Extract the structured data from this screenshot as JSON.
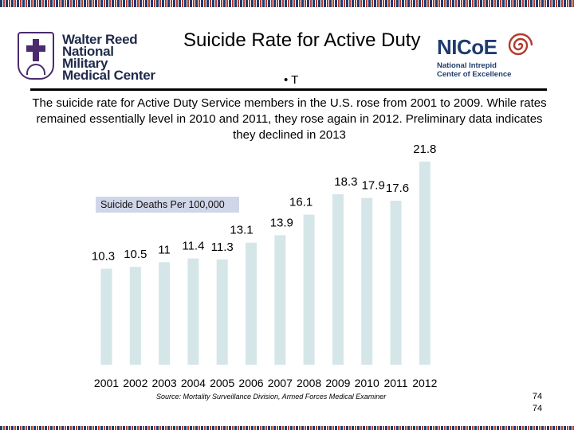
{
  "header": {
    "title": "Suicide Rate for Active Duty",
    "bullet": "• T",
    "logo_left_lines": [
      "Walter Reed",
      "National Military",
      "Medical Center"
    ],
    "logo_right_name": "NICoE",
    "logo_right_lines": [
      "National Intrepid",
      "Center of Excellence"
    ]
  },
  "description": "The suicide rate for Active Duty Service members in the U.S. rose from 2001 to 2009. While rates remained essentially level in 2010 and 2011, they rose again in 2012. Preliminary data indicates they declined in 2013",
  "chart_data": {
    "type": "bar",
    "title": "",
    "categories": [
      "2001",
      "2002",
      "2003",
      "2004",
      "2005",
      "2006",
      "2007",
      "2008",
      "2009",
      "2010",
      "2011",
      "2012"
    ],
    "series": [
      {
        "name": "Suicide Deaths Per 100,000",
        "values": [
          10.3,
          10.5,
          11,
          11.4,
          11.3,
          13.1,
          13.9,
          16.1,
          18.3,
          17.9,
          17.6,
          21.8
        ],
        "labels": [
          "10.3",
          "10.5",
          "11",
          "11.4",
          "11.3",
          "13.1",
          "13.9",
          "16.1",
          "18.3",
          "17.9",
          "17.6",
          "21.8"
        ]
      }
    ],
    "xlabel": "",
    "ylabel": "",
    "ylim": [
      0,
      25
    ],
    "legend": "Suicide Deaths Per 100,000",
    "bar_color": "#d4e6e8",
    "grid": false
  },
  "source": "Source: Mortality Surveillance Division, Armed Forces Medical Examiner",
  "page_numbers": [
    "74",
    "74"
  ],
  "colors": {
    "navy": "#1f3c6e",
    "purple": "#4b2a6d",
    "accent_red": "#b33a2e"
  }
}
